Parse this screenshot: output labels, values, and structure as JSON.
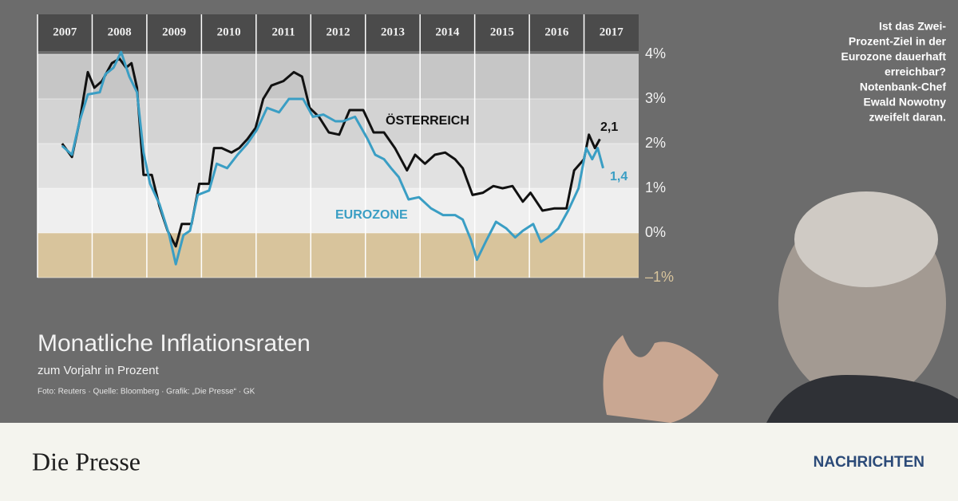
{
  "chart_data": {
    "type": "line",
    "title": "Monatliche Inflationsraten",
    "subtitle": "zum Vorjahr in Prozent",
    "source": "Foto: Reuters · Quelle: Bloomberg · Grafik: „Die Presse“ · GK",
    "xlim": [
      2007,
      2018
    ],
    "xticks": [
      2007,
      2008,
      2009,
      2010,
      2011,
      2012,
      2013,
      2014,
      2015,
      2016,
      2017
    ],
    "ylim": [
      -1,
      4
    ],
    "yticks": [
      {
        "value": -1,
        "label": "–1%"
      },
      {
        "value": 0,
        "label": "0%"
      },
      {
        "value": 1,
        "label": "1%"
      },
      {
        "value": 2,
        "label": "2%"
      },
      {
        "value": 3,
        "label": "3%"
      },
      {
        "value": 4,
        "label": "4%"
      }
    ],
    "band_colors": [
      "#d8c49c",
      "#efefef",
      "#e1e1e1",
      "#d3d3d3",
      "#c6c6c6"
    ],
    "series": [
      {
        "name": "ÖSTERREICH",
        "color": "#111111",
        "end_label": "2,1",
        "x": [
          2007.45,
          2007.63,
          2007.77,
          2007.92,
          2008.04,
          2008.18,
          2008.36,
          2008.5,
          2008.62,
          2008.72,
          2008.82,
          2008.94,
          2009.09,
          2009.23,
          2009.38,
          2009.53,
          2009.64,
          2009.82,
          2009.96,
          2010.14,
          2010.23,
          2010.37,
          2010.55,
          2010.69,
          2010.84,
          2010.99,
          2011.13,
          2011.28,
          2011.5,
          2011.69,
          2011.84,
          2011.98,
          2012.15,
          2012.33,
          2012.52,
          2012.71,
          2012.96,
          2013.15,
          2013.34,
          2013.54,
          2013.76,
          2013.91,
          2014.09,
          2014.27,
          2014.46,
          2014.64,
          2014.78,
          2014.96,
          2015.15,
          2015.34,
          2015.51,
          2015.69,
          2015.88,
          2016.02,
          2016.24,
          2016.46,
          2016.68,
          2016.82,
          2017.0,
          2017.09,
          2017.2,
          2017.29
        ],
        "values": [
          2.0,
          1.7,
          2.5,
          3.6,
          3.25,
          3.4,
          3.8,
          3.9,
          3.7,
          3.8,
          3.25,
          1.3,
          1.3,
          0.6,
          0.05,
          -0.3,
          0.2,
          0.2,
          1.1,
          1.1,
          1.9,
          1.9,
          1.8,
          1.9,
          2.1,
          2.35,
          3.0,
          3.3,
          3.4,
          3.6,
          3.5,
          2.8,
          2.6,
          2.25,
          2.2,
          2.75,
          2.75,
          2.25,
          2.25,
          1.9,
          1.4,
          1.75,
          1.55,
          1.75,
          1.8,
          1.65,
          1.45,
          0.85,
          0.9,
          1.05,
          1.0,
          1.05,
          0.7,
          0.9,
          0.5,
          0.55,
          0.55,
          1.4,
          1.65,
          2.2,
          1.9,
          2.1
        ]
      },
      {
        "name": "EUROZONE",
        "color": "#3a9ec4",
        "end_label": "1,4",
        "x": [
          2007.45,
          2007.63,
          2007.77,
          2007.92,
          2008.14,
          2008.24,
          2008.39,
          2008.53,
          2008.68,
          2008.82,
          2008.94,
          2009.06,
          2009.23,
          2009.41,
          2009.53,
          2009.67,
          2009.79,
          2009.93,
          2010.14,
          2010.28,
          2010.47,
          2010.66,
          2010.84,
          2011.01,
          2011.2,
          2011.42,
          2011.6,
          2011.86,
          2012.04,
          2012.23,
          2012.45,
          2012.59,
          2012.81,
          2013.04,
          2013.18,
          2013.34,
          2013.47,
          2013.61,
          2013.79,
          2013.98,
          2014.2,
          2014.42,
          2014.64,
          2014.78,
          2014.93,
          2015.04,
          2015.22,
          2015.39,
          2015.58,
          2015.74,
          2015.88,
          2016.07,
          2016.21,
          2016.39,
          2016.53,
          2016.71,
          2016.9,
          2017.04,
          2017.15,
          2017.25,
          2017.35
        ],
        "values": [
          1.95,
          1.75,
          2.5,
          3.1,
          3.15,
          3.55,
          3.7,
          4.05,
          3.5,
          3.15,
          1.8,
          1.1,
          0.65,
          -0.05,
          -0.7,
          -0.05,
          0.05,
          0.85,
          0.95,
          1.55,
          1.45,
          1.75,
          2.0,
          2.3,
          2.8,
          2.7,
          3.0,
          3.0,
          2.6,
          2.65,
          2.5,
          2.5,
          2.6,
          2.1,
          1.75,
          1.65,
          1.45,
          1.25,
          0.75,
          0.8,
          0.55,
          0.4,
          0.4,
          0.3,
          -0.15,
          -0.6,
          -0.15,
          0.25,
          0.1,
          -0.1,
          0.05,
          0.2,
          -0.2,
          -0.05,
          0.1,
          0.5,
          1.0,
          1.9,
          1.65,
          1.9,
          1.45
        ]
      }
    ]
  },
  "side_text": [
    "Ist das Zwei-",
    "Prozent-Ziel in der",
    "Eurozone dauerhaft",
    "erreichbar?",
    "Notenbank-Chef",
    "Ewald Nowotny",
    "zweifelt daran."
  ],
  "footer": {
    "logo": "Die Presse",
    "section": "NACHRICHTEN"
  }
}
